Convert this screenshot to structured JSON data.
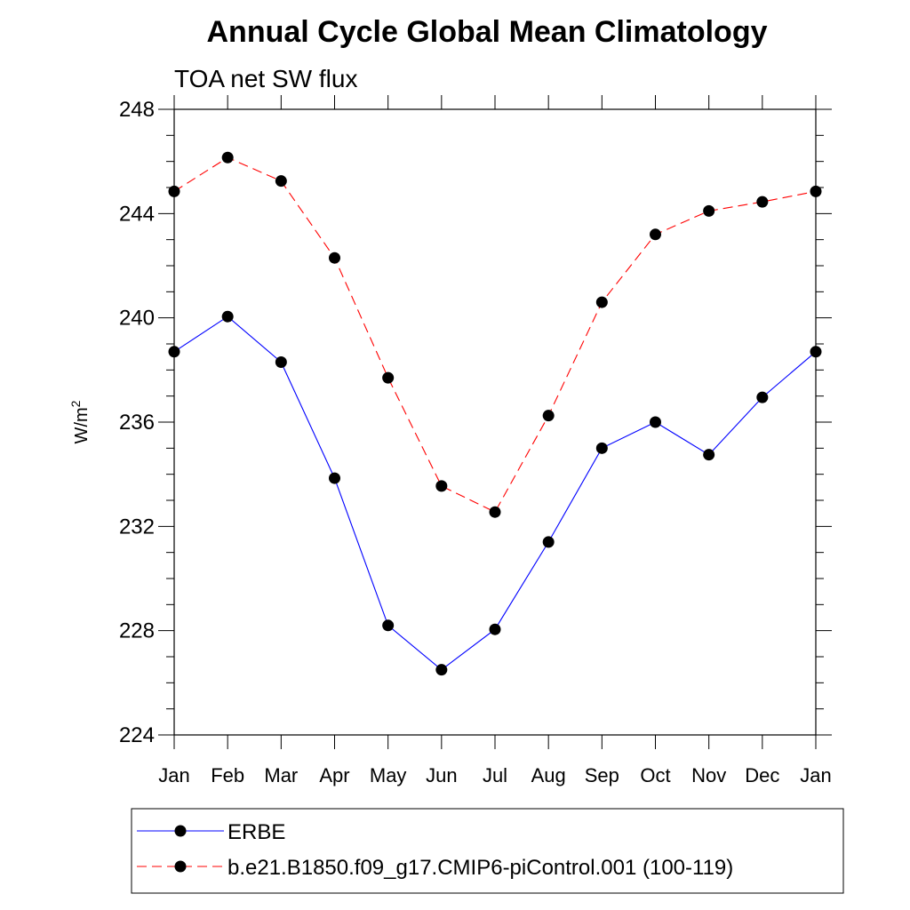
{
  "chart_data": {
    "type": "line",
    "title": "Annual Cycle Global Mean Climatology",
    "subtitle": "TOA net SW flux",
    "ylabel_base": "W/m",
    "ylabel_sup": "2",
    "xlabel": "",
    "categories": [
      "Jan",
      "Feb",
      "Mar",
      "Apr",
      "May",
      "Jun",
      "Jul",
      "Aug",
      "Sep",
      "Oct",
      "Nov",
      "Dec",
      "Jan"
    ],
    "ylim": [
      224,
      248
    ],
    "yticks": [
      224,
      228,
      232,
      236,
      240,
      244,
      248
    ],
    "yticks_labels": [
      "224",
      "228",
      "232",
      "236",
      "240",
      "244",
      "248"
    ],
    "legend_position": "bottom",
    "series": [
      {
        "name": "ERBE",
        "color": "#0000ff",
        "style": "solid",
        "marker": "circle",
        "values": [
          238.7,
          240.05,
          238.3,
          233.85,
          228.2,
          226.5,
          228.05,
          231.4,
          235.0,
          236.0,
          234.75,
          236.95,
          238.7
        ]
      },
      {
        "name": "b.e21.B1850.f09_g17.CMIP6-piControl.001 (100-119)",
        "color": "#ff0000",
        "style": "dashed",
        "marker": "circle",
        "values": [
          244.85,
          246.15,
          245.25,
          242.3,
          237.7,
          233.55,
          232.55,
          236.25,
          240.6,
          243.2,
          244.1,
          244.45,
          244.85
        ]
      }
    ]
  }
}
